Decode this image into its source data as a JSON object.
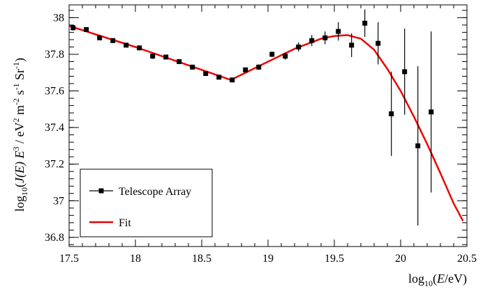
{
  "chart_data": {
    "type": "scatter",
    "title": "",
    "xlabel": {
      "pre": "log",
      "sub": "10",
      "mid": "(",
      "var": "E",
      "post": "/eV)"
    },
    "ylabel": {
      "pre": "log",
      "sub": "10",
      "open": "(",
      "j": "J",
      "e1": "(E)",
      "e3": "E",
      "sup3": "3",
      "slash": " / eV",
      "sup2a": "2",
      "m": " m",
      "sup2b": "-2",
      "s": " s",
      "sup1a": "-1",
      "sr": " Sr",
      "sup1b": "-1",
      "close": ")"
    },
    "xlim": [
      17.5,
      20.5
    ],
    "ylim": [
      36.75,
      38.07
    ],
    "x_ticks": [
      "17.5",
      "18",
      "18.5",
      "19",
      "19.5",
      "20",
      "20.5"
    ],
    "y_ticks": [
      "36.8",
      "37",
      "37.2",
      "37.4",
      "37.6",
      "37.8",
      "38"
    ],
    "legend": {
      "position": "bottom-left",
      "entries": [
        "Telescope Array",
        "Fit"
      ]
    },
    "series": [
      {
        "name": "Telescope Array",
        "kind": "points-with-errors",
        "color": "#000000",
        "points": [
          {
            "x": 17.53,
            "y": 37.945,
            "err": 0.015
          },
          {
            "x": 17.63,
            "y": 37.935,
            "err": 0.012
          },
          {
            "x": 17.73,
            "y": 37.89,
            "err": 0.012
          },
          {
            "x": 17.83,
            "y": 37.875,
            "err": 0.012
          },
          {
            "x": 17.93,
            "y": 37.85,
            "err": 0.012
          },
          {
            "x": 18.03,
            "y": 37.835,
            "err": 0.012
          },
          {
            "x": 18.13,
            "y": 37.79,
            "err": 0.015
          },
          {
            "x": 18.23,
            "y": 37.785,
            "err": 0.01
          },
          {
            "x": 18.33,
            "y": 37.76,
            "err": 0.01
          },
          {
            "x": 18.43,
            "y": 37.73,
            "err": 0.01
          },
          {
            "x": 18.53,
            "y": 37.695,
            "err": 0.01
          },
          {
            "x": 18.63,
            "y": 37.675,
            "err": 0.01
          },
          {
            "x": 18.73,
            "y": 37.66,
            "err": 0.01
          },
          {
            "x": 18.83,
            "y": 37.715,
            "err": 0.01
          },
          {
            "x": 18.93,
            "y": 37.73,
            "err": 0.015
          },
          {
            "x": 19.03,
            "y": 37.8,
            "err": 0.015
          },
          {
            "x": 19.13,
            "y": 37.79,
            "err": 0.02
          },
          {
            "x": 19.23,
            "y": 37.84,
            "err": 0.025
          },
          {
            "x": 19.33,
            "y": 37.875,
            "err": 0.03
          },
          {
            "x": 19.43,
            "y": 37.89,
            "err": 0.035
          },
          {
            "x": 19.53,
            "y": 37.925,
            "err": 0.05
          },
          {
            "x": 19.63,
            "y": 37.85,
            "err": 0.065
          },
          {
            "x": 19.73,
            "y": 37.97,
            "err": 0.075
          },
          {
            "x": 19.83,
            "y": 37.86,
            "err": 0.115
          },
          {
            "x": 19.93,
            "y": 37.475,
            "err": 0.23
          },
          {
            "x": 20.03,
            "y": 37.705,
            "err": 0.235
          },
          {
            "x": 20.13,
            "y": 37.3,
            "err": 0.435
          },
          {
            "x": 20.23,
            "y": 37.485,
            "err": 0.44
          }
        ]
      },
      {
        "name": "Fit",
        "kind": "line",
        "color": "#ee0000",
        "points": [
          {
            "x": 17.5,
            "y": 37.955
          },
          {
            "x": 18.0,
            "y": 37.84
          },
          {
            "x": 18.5,
            "y": 37.715
          },
          {
            "x": 18.72,
            "y": 37.66
          },
          {
            "x": 19.0,
            "y": 37.76
          },
          {
            "x": 19.2,
            "y": 37.83
          },
          {
            "x": 19.4,
            "y": 37.885
          },
          {
            "x": 19.5,
            "y": 37.9
          },
          {
            "x": 19.6,
            "y": 37.905
          },
          {
            "x": 19.7,
            "y": 37.885
          },
          {
            "x": 19.8,
            "y": 37.825
          },
          {
            "x": 19.9,
            "y": 37.72
          },
          {
            "x": 20.0,
            "y": 37.6
          },
          {
            "x": 20.1,
            "y": 37.46
          },
          {
            "x": 20.2,
            "y": 37.31
          },
          {
            "x": 20.3,
            "y": 37.15
          },
          {
            "x": 20.4,
            "y": 36.985
          },
          {
            "x": 20.47,
            "y": 36.89
          }
        ]
      }
    ]
  }
}
